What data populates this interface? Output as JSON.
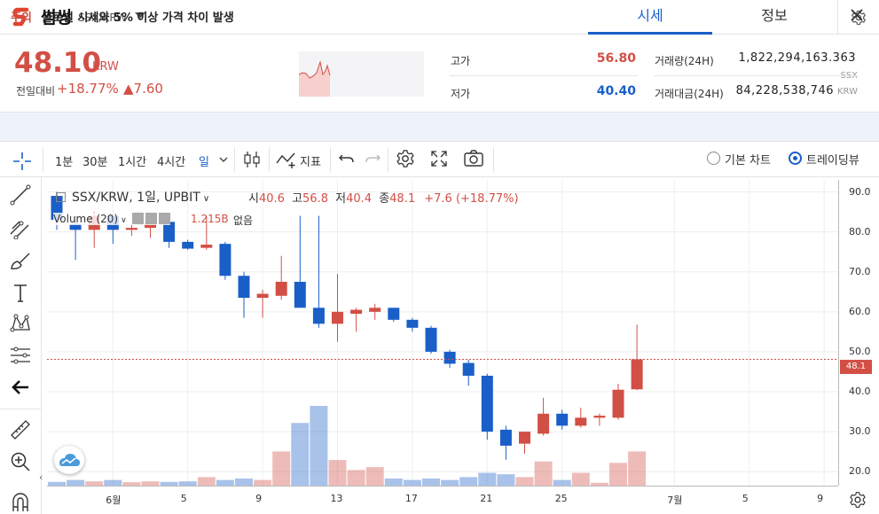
{
  "header": {
    "coin_name": "썸씽",
    "pair": "SSX/KRW",
    "tabs": [
      {
        "label": "시세",
        "active": true
      },
      {
        "label": "정보",
        "active": false
      }
    ]
  },
  "price": {
    "current": "48.10",
    "unit": "KRW",
    "change_label": "전일대비",
    "change_rate": "+18.77%",
    "change_abs": "▲7.60"
  },
  "stats": {
    "high_label": "고가",
    "high_value": "56.80",
    "low_label": "저가",
    "low_value": "40.40",
    "volume_label": "거래량(24H)",
    "volume_value": "1,822,294,163.363",
    "volume_unit": "SSX",
    "amount_label": "거래대금(24H)",
    "amount_value": "84,228,538,746",
    "amount_unit": "KRW"
  },
  "notice": {
    "tag": "주의",
    "text": "글로벌 시세와 5% 이상 가격 차이 발생"
  },
  "toolbar": {
    "intervals": [
      "1분",
      "30분",
      "1시간",
      "4시간",
      "일"
    ],
    "indicators_label": "지표",
    "chart_modes": [
      {
        "label": "기본 차트",
        "selected": false
      },
      {
        "label": "트레이딩뷰",
        "selected": true
      }
    ]
  },
  "chart_legend": {
    "symbol": "SSX/KRW, 1일, UPBIT",
    "open_label": "시",
    "open": "40.6",
    "high_label": "고",
    "high": "56.8",
    "low_label": "저",
    "low": "40.4",
    "close_label": "종",
    "close": "48.1",
    "change": "+7.6 (+18.77%)",
    "volume_label": "Volume (20)",
    "volume_value": "1.215B",
    "volume_extra": "없음"
  },
  "colors": {
    "up": "#d24f45",
    "down": "#1a5fc8",
    "accent": "#1a5fc8"
  },
  "chart_data": {
    "type": "candlestick",
    "price_ticks": [
      "90.0",
      "80.0",
      "70.0",
      "60.0",
      "50.0",
      "40.0",
      "30.0",
      "20.0"
    ],
    "last_price_label": "48.1",
    "date_ticks": [
      "6월",
      "5",
      "9",
      "13",
      "17",
      "21",
      "25",
      "7월",
      "5",
      "9"
    ],
    "ylim": [
      16.5,
      93
    ],
    "candles": [
      {
        "o": 89,
        "h": 90,
        "l": 80.5,
        "c": 83,
        "v": 0.13
      },
      {
        "o": 82,
        "h": 84,
        "l": 73,
        "c": 80.5,
        "v": 0.2
      },
      {
        "o": 80.5,
        "h": 85,
        "l": 76,
        "c": 84,
        "v": 0.15
      },
      {
        "o": 84,
        "h": 84.5,
        "l": 77,
        "c": 80.5,
        "v": 0.2
      },
      {
        "o": 80.5,
        "h": 82,
        "l": 79,
        "c": 81,
        "v": 0.12
      },
      {
        "o": 81,
        "h": 82,
        "l": 78.5,
        "c": 82.5,
        "v": 0.15
      },
      {
        "o": 82.5,
        "h": 83,
        "l": 76,
        "c": 77.5,
        "v": 0.13
      },
      {
        "o": 77.5,
        "h": 78,
        "l": 75.5,
        "c": 75.8,
        "v": 0.15
      },
      {
        "o": 76,
        "h": 84,
        "l": 75.5,
        "c": 76.8,
        "v": 0.3
      },
      {
        "o": 77,
        "h": 77.5,
        "l": 68,
        "c": 69,
        "v": 0.2
      },
      {
        "o": 69,
        "h": 70,
        "l": 58.5,
        "c": 63.5,
        "v": 0.25
      },
      {
        "o": 63.5,
        "h": 65.5,
        "l": 58.5,
        "c": 64.5,
        "v": 0.2
      },
      {
        "o": 64,
        "h": 74,
        "l": 63,
        "c": 67.5,
        "v": 1.2
      },
      {
        "o": 67.5,
        "h": 84,
        "l": 61,
        "c": 61,
        "v": 2.2
      },
      {
        "o": 61,
        "h": 84,
        "l": 56,
        "c": 57,
        "v": 2.8
      },
      {
        "o": 57,
        "h": 69.5,
        "l": 52.5,
        "c": 60,
        "v": 0.9
      },
      {
        "o": 59.5,
        "h": 61,
        "l": 55,
        "c": 60.5,
        "v": 0.55
      },
      {
        "o": 60,
        "h": 62,
        "l": 58,
        "c": 61,
        "v": 0.65
      },
      {
        "o": 61,
        "h": 61,
        "l": 57.5,
        "c": 58,
        "v": 0.25
      },
      {
        "o": 58,
        "h": 58.5,
        "l": 55,
        "c": 56,
        "v": 0.2
      },
      {
        "o": 56,
        "h": 56.5,
        "l": 49.5,
        "c": 50,
        "v": 0.25
      },
      {
        "o": 50,
        "h": 50.5,
        "l": 46,
        "c": 47,
        "v": 0.2
      },
      {
        "o": 47.2,
        "h": 48,
        "l": 41.5,
        "c": 44,
        "v": 0.3
      },
      {
        "o": 44,
        "h": 44.5,
        "l": 28,
        "c": 30,
        "v": 0.45
      },
      {
        "o": 30.5,
        "h": 31.5,
        "l": 23,
        "c": 26.5,
        "v": 0.4
      },
      {
        "o": 27,
        "h": 30,
        "l": 24.5,
        "c": 30,
        "v": 0.3
      },
      {
        "o": 29.5,
        "h": 38.5,
        "l": 29,
        "c": 34.5,
        "v": 0.85
      },
      {
        "o": 34.5,
        "h": 35.5,
        "l": 30.5,
        "c": 31.5,
        "v": 0.2
      },
      {
        "o": 31.5,
        "h": 36,
        "l": 31,
        "c": 33.5,
        "v": 0.45
      },
      {
        "o": 33.5,
        "h": 34.5,
        "l": 31.5,
        "c": 34,
        "v": 0.1
      },
      {
        "o": 33.5,
        "h": 42,
        "l": 33,
        "c": 40.5,
        "v": 0.8
      },
      {
        "o": 40.6,
        "h": 56.8,
        "l": 40.4,
        "c": 48.1,
        "v": 1.2
      }
    ]
  }
}
